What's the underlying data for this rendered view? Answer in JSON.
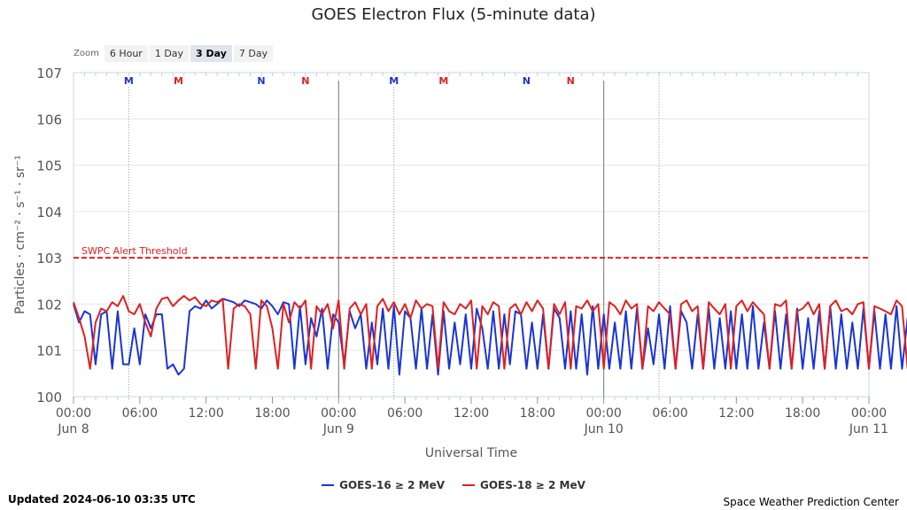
{
  "chart_data": {
    "type": "line",
    "title": "GOES Electron Flux (5-minute data)",
    "xlabel": "Universal Time",
    "ylabel": "Particles · cm⁻² · s⁻¹ · sr⁻¹",
    "y_scale": "log",
    "ylim": [
      1,
      10000000
    ],
    "y_ticks": [
      "100",
      "101",
      "102",
      "103",
      "104",
      "105",
      "106",
      "107"
    ],
    "xlim": [
      "2024-06-08 00:00",
      "2024-06-11 00:00"
    ],
    "x_ticks": [
      {
        "time": "00:00",
        "date": "Jun 8"
      },
      {
        "time": "06:00",
        "date": ""
      },
      {
        "time": "12:00",
        "date": ""
      },
      {
        "time": "18:00",
        "date": ""
      },
      {
        "time": "00:00",
        "date": "Jun 9"
      },
      {
        "time": "06:00",
        "date": ""
      },
      {
        "time": "12:00",
        "date": ""
      },
      {
        "time": "18:00",
        "date": ""
      },
      {
        "time": "00:00",
        "date": "Jun 10"
      },
      {
        "time": "06:00",
        "date": ""
      },
      {
        "time": "12:00",
        "date": ""
      },
      {
        "time": "18:00",
        "date": ""
      },
      {
        "time": "00:00",
        "date": "Jun 11"
      }
    ],
    "threshold": {
      "label": "SWPC Alert Threshold",
      "value": 1000,
      "color": "#e02020"
    },
    "markers": [
      {
        "label": "M",
        "time": "2024-06-08 05:00",
        "color": "#1a35d6"
      },
      {
        "label": "M",
        "time": "2024-06-08 09:30",
        "color": "#e02020"
      },
      {
        "label": "N",
        "time": "2024-06-08 17:00",
        "color": "#1a35d6"
      },
      {
        "label": "N",
        "time": "2024-06-08 21:00",
        "color": "#e02020"
      },
      {
        "label": "M",
        "time": "2024-06-09 05:00",
        "color": "#1a35d6"
      },
      {
        "label": "M",
        "time": "2024-06-09 09:30",
        "color": "#e02020"
      },
      {
        "label": "N",
        "time": "2024-06-09 17:00",
        "color": "#1a35d6"
      },
      {
        "label": "N",
        "time": "2024-06-09 21:00",
        "color": "#e02020"
      }
    ],
    "grid": true,
    "legend_position": "bottom-center",
    "series": [
      {
        "name": "GOES-16 ≥ 2 MeV",
        "color": "#1a35d6",
        "x_start": "2024-06-08 00:00",
        "step_minutes": 30,
        "values": [
          100,
          40,
          70,
          60,
          5,
          60,
          70,
          4,
          70,
          5,
          5,
          30,
          5,
          60,
          30,
          60,
          60,
          4,
          5,
          3,
          4,
          70,
          90,
          80,
          120,
          80,
          100,
          130,
          120,
          110,
          90,
          120,
          110,
          100,
          80,
          120,
          90,
          60,
          110,
          100,
          4,
          90,
          5,
          50,
          20,
          80,
          4,
          60,
          40,
          5,
          70,
          30,
          60,
          4,
          40,
          5,
          80,
          4,
          90,
          3,
          70,
          50,
          4,
          80,
          4,
          60,
          3,
          70,
          4,
          40,
          5,
          60,
          4,
          80,
          30,
          4,
          70,
          4,
          60,
          5,
          70,
          60,
          4,
          40,
          4,
          60,
          4,
          80,
          50,
          4,
          70,
          4,
          60,
          3,
          90,
          4,
          60,
          4,
          40,
          4,
          70,
          4,
          80,
          4,
          30,
          5,
          60,
          4,
          90,
          4,
          70,
          40,
          4,
          60,
          4,
          80,
          4,
          50,
          4,
          70,
          4,
          60,
          4,
          90,
          4,
          40,
          4,
          70,
          4,
          60,
          4,
          80,
          4,
          50,
          4,
          70,
          4,
          90,
          4,
          60,
          4,
          40,
          4,
          80,
          4,
          70,
          4,
          60,
          4,
          90,
          4,
          50,
          4,
          70
        ]
      },
      {
        "name": "GOES-18 ≥ 2 MeV",
        "color": "#e02020",
        "x_start": "2024-06-08 00:00",
        "step_minutes": 30,
        "values": [
          110,
          50,
          20,
          4,
          40,
          80,
          70,
          110,
          90,
          150,
          70,
          60,
          100,
          40,
          20,
          80,
          130,
          140,
          90,
          120,
          150,
          120,
          140,
          100,
          90,
          120,
          110,
          130,
          4,
          80,
          100,
          90,
          60,
          4,
          120,
          90,
          30,
          4,
          100,
          40,
          110,
          80,
          120,
          4,
          90,
          60,
          100,
          30,
          120,
          4,
          80,
          110,
          60,
          100,
          4,
          90,
          130,
          70,
          110,
          60,
          100,
          50,
          120,
          80,
          100,
          90,
          4,
          110,
          70,
          60,
          100,
          80,
          120,
          4,
          90,
          60,
          110,
          90,
          4,
          80,
          100,
          60,
          110,
          70,
          120,
          80,
          4,
          100,
          60,
          110,
          4,
          90,
          80,
          120,
          70,
          100,
          4,
          110,
          90,
          60,
          120,
          80,
          100,
          4,
          90,
          70,
          110,
          80,
          60,
          4,
          100,
          120,
          70,
          90,
          4,
          110,
          80,
          60,
          100,
          4,
          90,
          120,
          70,
          110,
          80,
          60,
          4,
          100,
          90,
          120,
          4,
          70,
          80,
          110,
          60,
          100,
          4,
          90,
          120,
          70,
          80,
          60,
          100,
          110,
          4,
          90,
          80,
          70,
          60,
          120,
          90,
          4
        ]
      }
    ]
  },
  "zoom": {
    "label": "Zoom",
    "buttons": [
      "6 Hour",
      "1 Day",
      "3 Day",
      "7 Day"
    ],
    "active": "3 Day"
  },
  "footer": {
    "updated": "Updated 2024-06-10 03:35 UTC",
    "credit": "Space Weather Prediction Center"
  }
}
